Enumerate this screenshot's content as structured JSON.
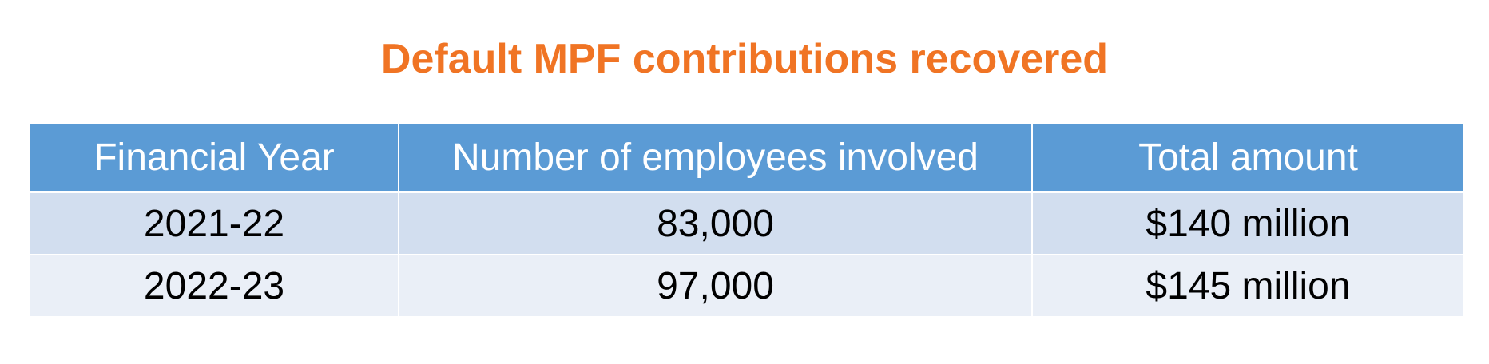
{
  "title": "Default MPF contributions recovered",
  "table": {
    "header": [
      "Financial Year",
      "Number of employees involved",
      "Total amount"
    ],
    "rows": [
      [
        "2021-22",
        "83,000",
        "$140 million"
      ],
      [
        "2022-23",
        "97,000",
        "$145 million"
      ]
    ]
  }
}
